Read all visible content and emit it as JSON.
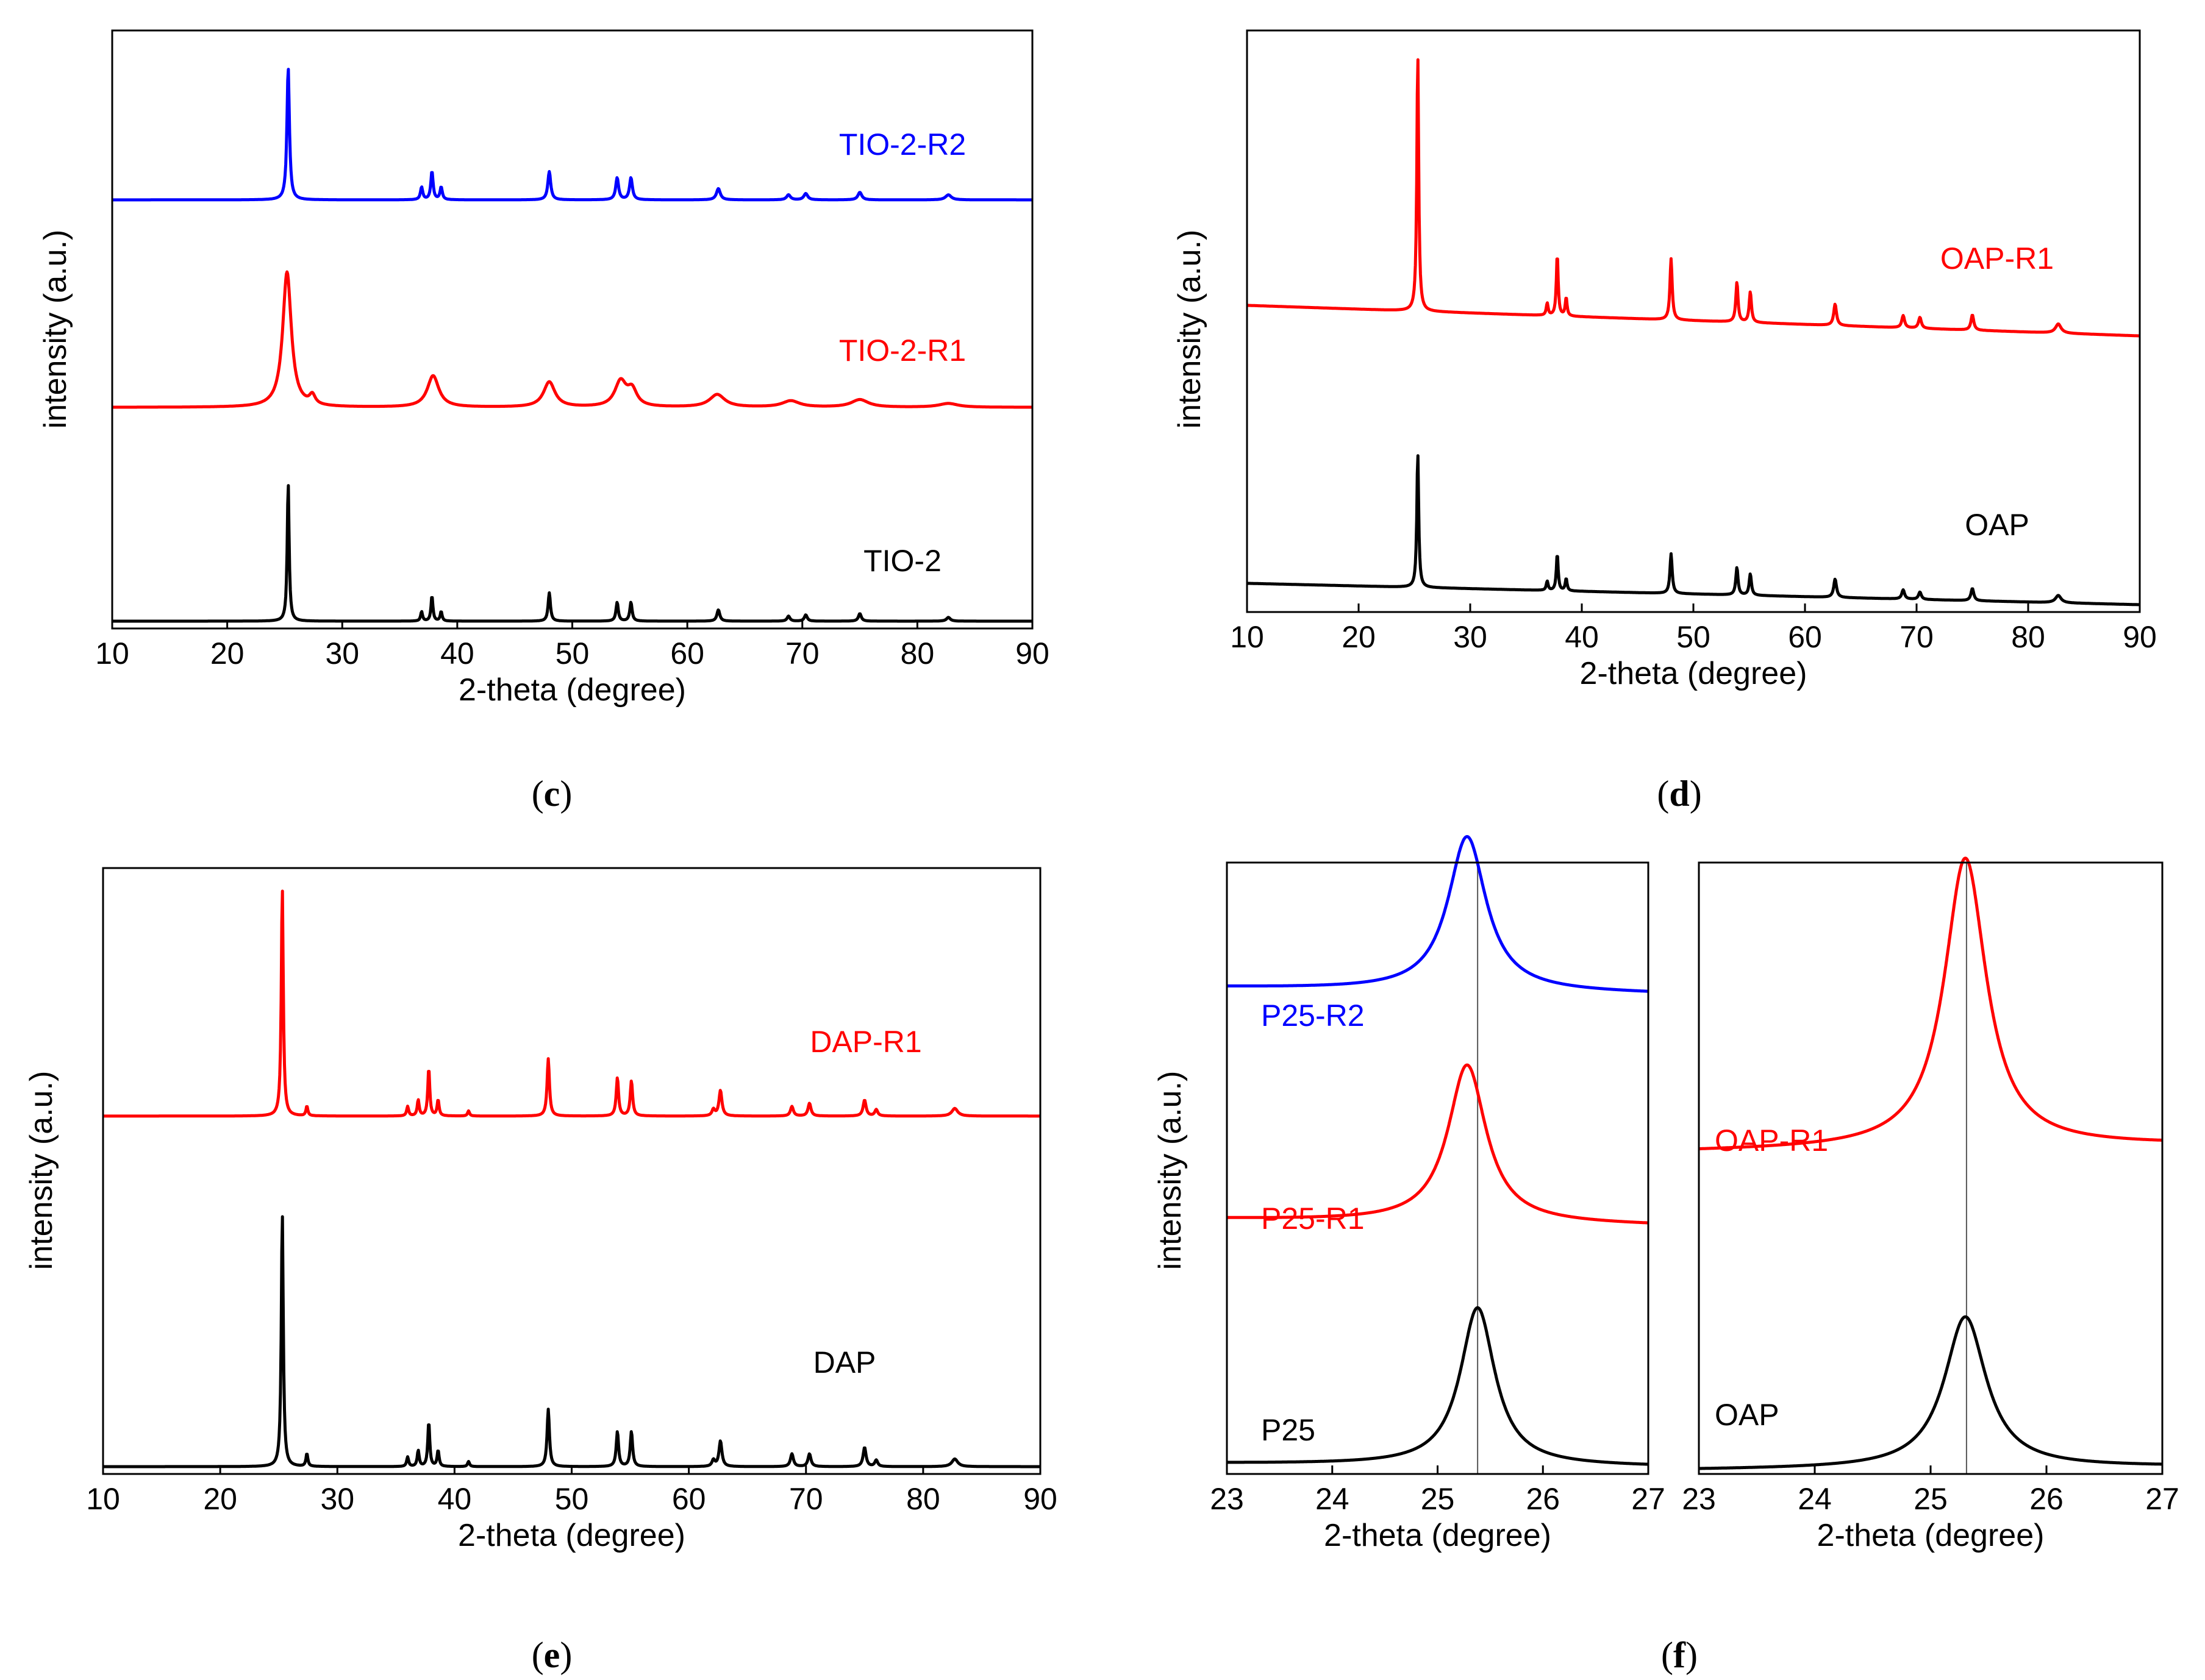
{
  "chart_data": [
    {
      "type": "line",
      "panel": "c",
      "xlabel": "2-theta (degree)",
      "ylabel": "intensity (a.u.)",
      "xlim": [
        10,
        90
      ],
      "xticks": [
        "10",
        "20",
        "30",
        "40",
        "50",
        "60",
        "70",
        "80",
        "90"
      ],
      "series": [
        {
          "name": "TIO-2-R2",
          "color": "#0000ff",
          "baseline": 0.67,
          "slope": 0,
          "peaks": [
            [
              25.3,
              0.21,
              0.13
            ],
            [
              36.9,
              0.02,
              0.12
            ],
            [
              37.8,
              0.045,
              0.12
            ],
            [
              38.6,
              0.02,
              0.12
            ],
            [
              48.0,
              0.045,
              0.15
            ],
            [
              53.9,
              0.035,
              0.15
            ],
            [
              55.1,
              0.035,
              0.15
            ],
            [
              62.7,
              0.018,
              0.2
            ],
            [
              68.8,
              0.008,
              0.2
            ],
            [
              70.3,
              0.01,
              0.2
            ],
            [
              75.0,
              0.012,
              0.2
            ],
            [
              82.7,
              0.008,
              0.3
            ]
          ]
        },
        {
          "name": "TIO-2-R1",
          "color": "#ff0000",
          "baseline": 0.34,
          "slope": 0,
          "peaks": [
            [
              25.2,
              0.215,
              0.45
            ],
            [
              27.4,
              0.015,
              0.3
            ],
            [
              37.9,
              0.05,
              0.6
            ],
            [
              48.0,
              0.04,
              0.6
            ],
            [
              54.2,
              0.04,
              0.6
            ],
            [
              55.2,
              0.025,
              0.5
            ],
            [
              62.6,
              0.02,
              0.8
            ],
            [
              69.0,
              0.01,
              0.9
            ],
            [
              75.0,
              0.012,
              0.9
            ],
            [
              82.7,
              0.006,
              1.0
            ]
          ]
        },
        {
          "name": "TIO-2",
          "color": "#000000",
          "baseline": 0.0,
          "slope": 0,
          "peaks": [
            [
              25.3,
              0.22,
              0.1
            ],
            [
              36.9,
              0.015,
              0.1
            ],
            [
              37.8,
              0.04,
              0.1
            ],
            [
              38.6,
              0.015,
              0.1
            ],
            [
              48.0,
              0.045,
              0.12
            ],
            [
              53.9,
              0.03,
              0.12
            ],
            [
              55.1,
              0.03,
              0.12
            ],
            [
              62.7,
              0.018,
              0.15
            ],
            [
              68.8,
              0.008,
              0.15
            ],
            [
              70.3,
              0.01,
              0.15
            ],
            [
              75.0,
              0.012,
              0.15
            ],
            [
              82.7,
              0.006,
              0.2
            ]
          ]
        }
      ]
    },
    {
      "type": "line",
      "panel": "d",
      "xlabel": "2-theta (degree)",
      "ylabel": "intensity (a.u.)",
      "xlim": [
        10,
        90
      ],
      "xticks": [
        "10",
        "20",
        "30",
        "40",
        "50",
        "60",
        "70",
        "80",
        "90"
      ],
      "series": [
        {
          "name": "OAP-R1",
          "color": "#ff0000",
          "baseline": 0.44,
          "slope": 0.05,
          "peaks": [
            [
              25.3,
              0.42,
              0.1
            ],
            [
              36.9,
              0.02,
              0.1
            ],
            [
              37.8,
              0.1,
              0.1
            ],
            [
              38.6,
              0.03,
              0.1
            ],
            [
              48.0,
              0.1,
              0.12
            ],
            [
              53.9,
              0.065,
              0.12
            ],
            [
              55.1,
              0.05,
              0.12
            ],
            [
              62.7,
              0.035,
              0.15
            ],
            [
              68.8,
              0.02,
              0.15
            ],
            [
              70.3,
              0.018,
              0.15
            ],
            [
              75.0,
              0.025,
              0.15
            ],
            [
              82.7,
              0.015,
              0.3
            ]
          ]
        },
        {
          "name": "OAP",
          "color": "#000000",
          "baseline": 0.0,
          "slope": 0.035,
          "peaks": [
            [
              25.3,
              0.22,
              0.1
            ],
            [
              36.9,
              0.015,
              0.1
            ],
            [
              37.8,
              0.06,
              0.1
            ],
            [
              38.6,
              0.02,
              0.1
            ],
            [
              48.0,
              0.065,
              0.12
            ],
            [
              53.9,
              0.045,
              0.12
            ],
            [
              55.1,
              0.035,
              0.12
            ],
            [
              62.7,
              0.03,
              0.15
            ],
            [
              68.8,
              0.015,
              0.15
            ],
            [
              70.3,
              0.012,
              0.15
            ],
            [
              75.0,
              0.02,
              0.15
            ],
            [
              82.7,
              0.012,
              0.3
            ]
          ]
        }
      ]
    },
    {
      "type": "line",
      "panel": "e",
      "xlabel": "2-theta (degree)",
      "ylabel": "intensity (a.u.)",
      "xlim": [
        10,
        90
      ],
      "xticks": [
        "10",
        "20",
        "30",
        "40",
        "50",
        "60",
        "70",
        "80",
        "90"
      ],
      "series": [
        {
          "name": "DAP-R1",
          "color": "#ff0000",
          "baseline": 0.55,
          "slope": 0,
          "peaks": [
            [
              25.3,
              0.36,
              0.1
            ],
            [
              27.4,
              0.015,
              0.1
            ],
            [
              36.0,
              0.015,
              0.1
            ],
            [
              36.9,
              0.025,
              0.1
            ],
            [
              37.8,
              0.075,
              0.1
            ],
            [
              38.6,
              0.025,
              0.1
            ],
            [
              41.2,
              0.008,
              0.1
            ],
            [
              48.0,
              0.09,
              0.12
            ],
            [
              53.9,
              0.06,
              0.12
            ],
            [
              55.1,
              0.055,
              0.12
            ],
            [
              62.1,
              0.01,
              0.15
            ],
            [
              62.7,
              0.04,
              0.15
            ],
            [
              68.8,
              0.015,
              0.15
            ],
            [
              70.3,
              0.02,
              0.15
            ],
            [
              75.0,
              0.025,
              0.15
            ],
            [
              76.0,
              0.01,
              0.15
            ],
            [
              82.7,
              0.012,
              0.3
            ]
          ]
        },
        {
          "name": "DAP",
          "color": "#000000",
          "baseline": 0.0,
          "slope": 0,
          "peaks": [
            [
              25.3,
              0.4,
              0.1
            ],
            [
              27.4,
              0.02,
              0.1
            ],
            [
              36.0,
              0.015,
              0.1
            ],
            [
              36.9,
              0.025,
              0.1
            ],
            [
              37.8,
              0.07,
              0.1
            ],
            [
              38.6,
              0.025,
              0.1
            ],
            [
              41.2,
              0.008,
              0.1
            ],
            [
              48.0,
              0.09,
              0.12
            ],
            [
              53.9,
              0.055,
              0.12
            ],
            [
              55.1,
              0.055,
              0.12
            ],
            [
              62.1,
              0.01,
              0.15
            ],
            [
              62.7,
              0.04,
              0.15
            ],
            [
              68.8,
              0.02,
              0.15
            ],
            [
              70.3,
              0.02,
              0.15
            ],
            [
              75.0,
              0.03,
              0.15
            ],
            [
              76.0,
              0.01,
              0.15
            ],
            [
              82.7,
              0.012,
              0.3
            ]
          ]
        }
      ]
    },
    {
      "type": "line",
      "panel": "f-left",
      "xlabel": "2-theta (degree)",
      "ylabel": "intensity (a.u.)",
      "xlim": [
        23,
        27
      ],
      "xticks": [
        "23",
        "24",
        "25",
        "26",
        "27"
      ],
      "reference_line_x": 25.38,
      "series": [
        {
          "name": "P25-R2",
          "color": "#0000ff",
          "baseline": 0.735,
          "slope": 0.01,
          "peaks": [
            [
              25.28,
              0.24,
              0.22
            ]
          ]
        },
        {
          "name": "P25-R1",
          "color": "#ff0000",
          "baseline": 0.375,
          "slope": 0.01,
          "peaks": [
            [
              25.28,
              0.245,
              0.22
            ]
          ]
        },
        {
          "name": "P25",
          "color": "#000000",
          "baseline": 0.0,
          "slope": 0.005,
          "peaks": [
            [
              25.38,
              0.245,
              0.2
            ]
          ]
        }
      ]
    },
    {
      "type": "line",
      "panel": "f-right",
      "xlabel": "2-theta (degree)",
      "ylabel": "",
      "xlim": [
        23,
        27
      ],
      "xticks": [
        "23",
        "24",
        "25",
        "26",
        "27"
      ],
      "reference_line_x": 25.31,
      "series": [
        {
          "name": "OAP-R1",
          "color": "#ff0000",
          "baseline": 0.5,
          "slope": -0.01,
          "peaks": [
            [
              25.3,
              0.45,
              0.22
            ]
          ]
        },
        {
          "name": "OAP",
          "color": "#000000",
          "baseline": 0.0,
          "slope": -0.005,
          "peaks": [
            [
              25.3,
              0.235,
              0.22
            ]
          ]
        }
      ]
    }
  ],
  "panel_labels": {
    "c": {
      "open": "(",
      "letter": "c",
      "close": ")"
    },
    "d": {
      "open": "(",
      "letter": "d",
      "close": ")"
    },
    "e": {
      "open": "(",
      "letter": "e",
      "close": ")"
    },
    "f": {
      "open": "(",
      "letter": "f",
      "close": ")"
    }
  }
}
